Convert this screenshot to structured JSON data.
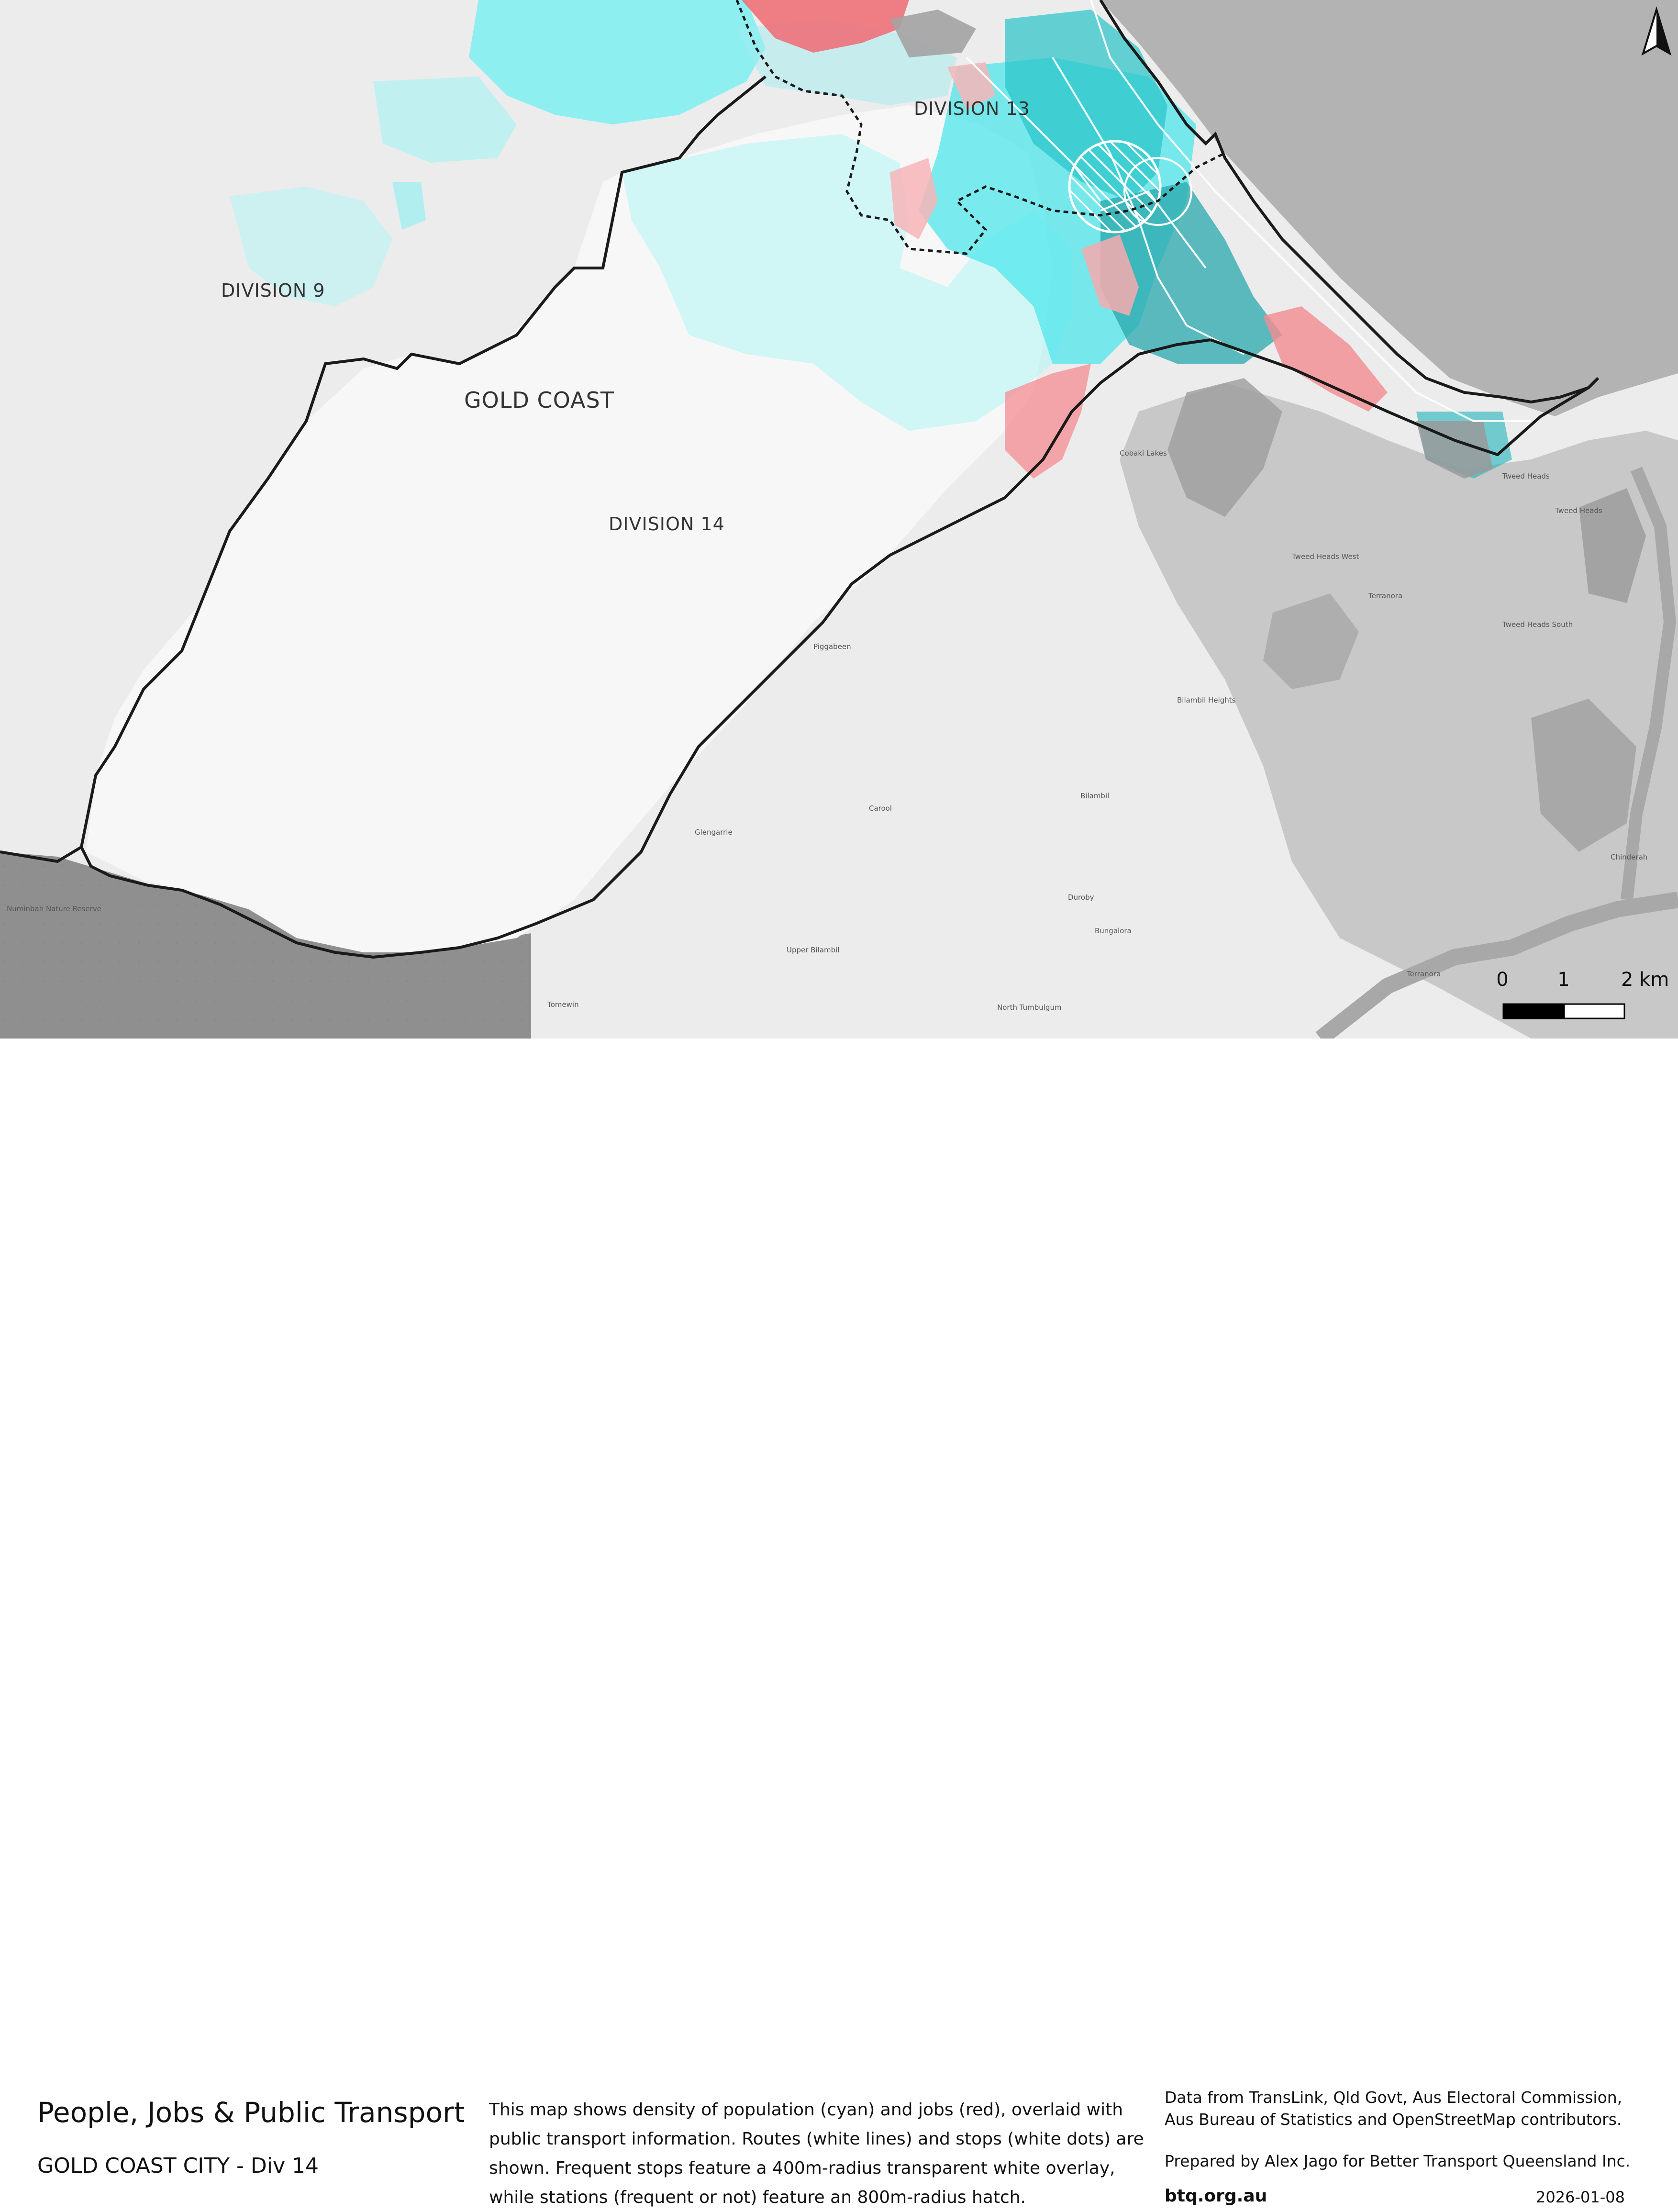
{
  "map": {
    "labels": {
      "division_13": "DIVISION 13",
      "division_9": "DIVISION 9",
      "gold_coast": "GOLD COAST",
      "division_14": "DIVISION 14"
    },
    "place_names": {
      "tweed_heads": "Tweed Heads",
      "tweed_heads_west": "Tweed Heads West",
      "tweed_heads_south": "Tweed Heads South",
      "terranora": "Terranora",
      "bilambil_heights": "Bilambil Heights",
      "bilambil": "Bilambil",
      "chinderah": "Chinderah",
      "piggabeen": "Piggabeen",
      "cobaki_lakes": "Cobaki Lakes",
      "numinbah": "Numinbah Nature Reserve",
      "glengarrie": "Glengarrie",
      "duroby": "Duroby",
      "bungalora": "Bungalora",
      "upper_bilambil": "Upper Bilambil",
      "north_tumbulgum": "North Tumbulgum",
      "tomewin": "Tomewin",
      "carool": "Carool"
    },
    "scale_bar": {
      "tick_0": "0",
      "tick_1": "1",
      "tick_2": "2 km",
      "segments_km": [
        0,
        1,
        2
      ]
    },
    "north_arrow": "north-arrow-icon",
    "colors": {
      "population": "#40e8ee",
      "jobs": "#f06a72",
      "ocean": "#b3b3b3",
      "boundary": "#1a1a1a"
    }
  },
  "footer": {
    "title": "People, Jobs & Public Transport",
    "subtitle": "GOLD COAST CITY - Div 14",
    "description": "This map shows density of population (cyan) and jobs (red), overlaid with public transport information. Routes (white lines) and stops (white dots) are shown. Frequent stops feature a 400m-radius transparent white overlay, while stations (frequent or not) feature an 800m-radius hatch.",
    "credits": "Data from TransLink,  Qld Govt,  Aus Electoral Commission, Aus Bureau of Statistics and OpenStreetMap contributors.",
    "prepared_by": "Prepared by Alex Jago for Better Transport Queensland Inc.",
    "website": "btq.org.au",
    "date": "2026-01-08"
  }
}
